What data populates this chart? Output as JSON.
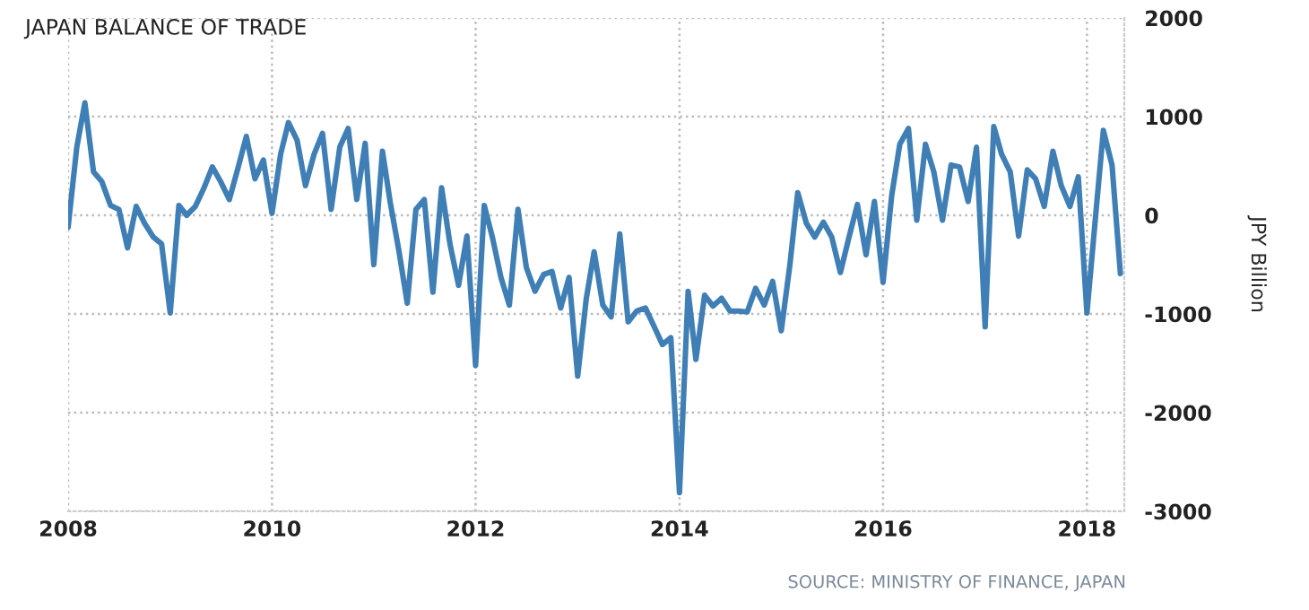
{
  "chart_data": {
    "type": "line",
    "title": "JAPAN BALANCE OF TRADE",
    "ylabel": "JPY Billion",
    "annotations": [
      "SOURCE: MINISTRY OF FINANCE, JAPAN"
    ],
    "x": [
      "2008-01",
      "2008-02",
      "2008-03",
      "2008-04",
      "2008-05",
      "2008-06",
      "2008-07",
      "2008-08",
      "2008-09",
      "2008-10",
      "2008-11",
      "2008-12",
      "2009-01",
      "2009-02",
      "2009-03",
      "2009-04",
      "2009-05",
      "2009-06",
      "2009-07",
      "2009-08",
      "2009-09",
      "2009-10",
      "2009-11",
      "2009-12",
      "2010-01",
      "2010-02",
      "2010-03",
      "2010-04",
      "2010-05",
      "2010-06",
      "2010-07",
      "2010-08",
      "2010-09",
      "2010-10",
      "2010-11",
      "2010-12",
      "2011-01",
      "2011-02",
      "2011-03",
      "2011-04",
      "2011-05",
      "2011-06",
      "2011-07",
      "2011-08",
      "2011-09",
      "2011-10",
      "2011-11",
      "2011-12",
      "2012-01",
      "2012-02",
      "2012-03",
      "2012-04",
      "2012-05",
      "2012-06",
      "2012-07",
      "2012-08",
      "2012-09",
      "2012-10",
      "2012-11",
      "2012-12",
      "2013-01",
      "2013-02",
      "2013-03",
      "2013-04",
      "2013-05",
      "2013-06",
      "2013-07",
      "2013-08",
      "2013-09",
      "2013-10",
      "2013-11",
      "2013-12",
      "2014-01",
      "2014-02",
      "2014-03",
      "2014-04",
      "2014-05",
      "2014-06",
      "2014-07",
      "2014-08",
      "2014-09",
      "2014-10",
      "2014-11",
      "2014-12",
      "2015-01",
      "2015-02",
      "2015-03",
      "2015-04",
      "2015-05",
      "2015-06",
      "2015-07",
      "2015-08",
      "2015-09",
      "2015-10",
      "2015-11",
      "2015-12",
      "2016-01",
      "2016-02",
      "2016-03",
      "2016-04",
      "2016-05",
      "2016-06",
      "2016-07",
      "2016-08",
      "2016-09",
      "2016-10",
      "2016-11",
      "2016-12",
      "2017-01",
      "2017-02",
      "2017-03",
      "2017-04",
      "2017-05",
      "2017-06",
      "2017-07",
      "2017-08",
      "2017-09",
      "2017-10",
      "2017-11",
      "2017-12",
      "2018-01",
      "2018-02",
      "2018-03",
      "2018-04",
      "2018-05"
    ],
    "series": [
      {
        "color": "#3f7fb5",
        "values": [
          -120,
          690,
          1140,
          440,
          340,
          100,
          60,
          -330,
          90,
          -80,
          -220,
          -290,
          -990,
          100,
          0,
          90,
          270,
          490,
          340,
          160,
          480,
          800,
          370,
          560,
          20,
          620,
          940,
          760,
          300,
          620,
          830,
          60,
          690,
          880,
          160,
          730,
          -500,
          650,
          130,
          -360,
          -890,
          60,
          160,
          -780,
          280,
          -290,
          -710,
          -210,
          -1520,
          100,
          -220,
          -630,
          -910,
          60,
          -530,
          -770,
          -600,
          -570,
          -940,
          -630,
          -1630,
          -840,
          -370,
          -910,
          -1030,
          -190,
          -1080,
          -970,
          -940,
          -1120,
          -1310,
          -1240,
          -2810,
          -770,
          -1460,
          -810,
          -920,
          -840,
          -970,
          -970,
          -980,
          -740,
          -910,
          -670,
          -1170,
          -500,
          230,
          -80,
          -220,
          -70,
          -220,
          -580,
          -220,
          110,
          -400,
          140,
          -680,
          200,
          720,
          880,
          -50,
          720,
          440,
          -50,
          510,
          490,
          140,
          690,
          -1130,
          900,
          620,
          440,
          -210,
          460,
          370,
          90,
          650,
          300,
          90,
          390,
          -990,
          -10,
          860,
          510,
          -590
        ]
      }
    ],
    "xlim": [
      "2008-01-01",
      "2018-05-15"
    ],
    "xticks": [
      "2008",
      "2010",
      "2012",
      "2014",
      "2016",
      "2018"
    ],
    "ylim": [
      -3000,
      2000
    ],
    "yticks": [
      -3000,
      -2000,
      -1000,
      0,
      1000,
      2000
    ],
    "grid": true,
    "line_style": "solid",
    "marker": "none"
  }
}
